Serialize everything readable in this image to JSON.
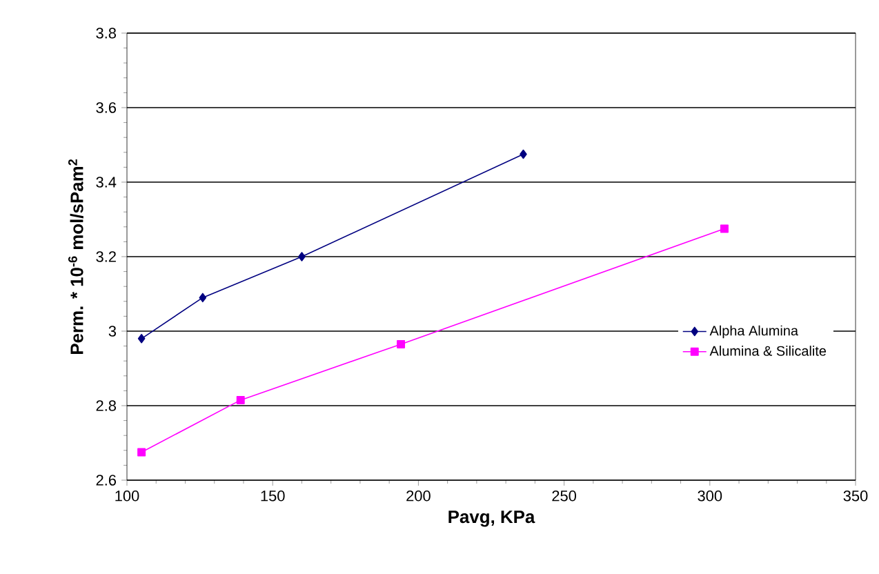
{
  "chart_data": {
    "type": "line",
    "xlabel": "Pavg, KPa",
    "ylabel": "Perm. * 10$^{-6}$ mol/sPam$^{2}$",
    "xlim": [
      100,
      350
    ],
    "xticks": [
      100,
      150,
      200,
      250,
      300,
      350
    ],
    "ylim": [
      2.6,
      3.8
    ],
    "yticks": [
      2.6,
      2.8,
      3,
      3.2,
      3.4,
      3.6,
      3.8
    ],
    "grid": "y",
    "legend": "right",
    "line_style": "solid",
    "series": [
      {
        "name": "Alpha Alumina",
        "color": "#000080",
        "marker": "diamond",
        "x": [
          105,
          126,
          160,
          236
        ],
        "values": [
          2.98,
          3.09,
          3.2,
          3.475
        ]
      },
      {
        "name": "Alumina & Silicalite",
        "color": "#ff00ff",
        "marker": "square",
        "x": [
          105,
          139,
          194,
          305
        ],
        "values": [
          2.675,
          2.815,
          2.965,
          3.275
        ]
      }
    ]
  }
}
